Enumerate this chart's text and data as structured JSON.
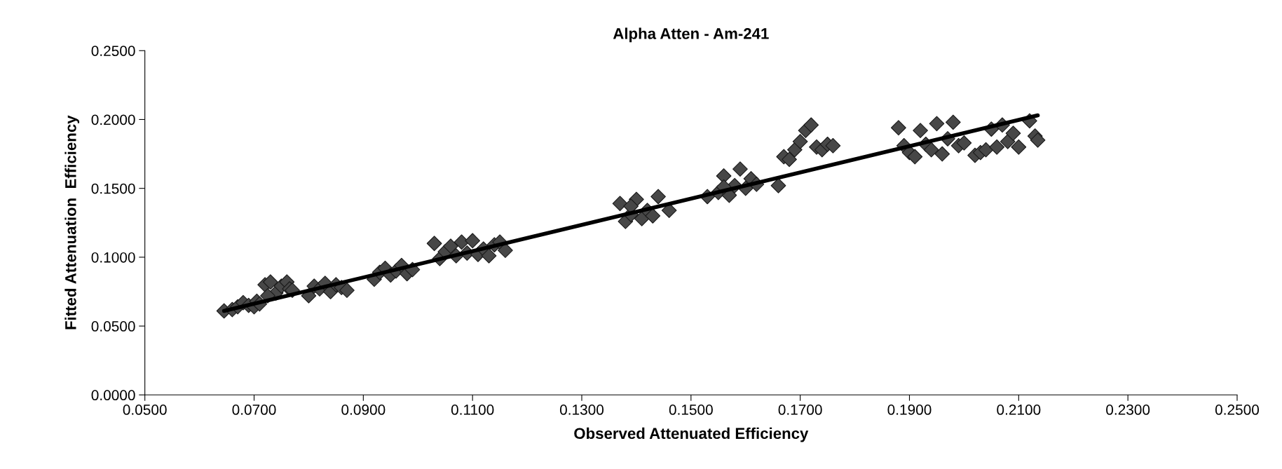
{
  "chart_data": {
    "type": "scatter",
    "title": "Alpha Atten - Am-241",
    "xlabel": "Observed Attenuated Efficiency",
    "ylabel": "Fitted Attenuation  Efficiency",
    "marker": "diamond",
    "grid": false,
    "xlim": [
      0.05,
      0.25
    ],
    "ylim": [
      0,
      0.25
    ],
    "xticks": [
      {
        "value": 0.05,
        "label": "0.0500"
      },
      {
        "value": 0.07,
        "label": "0.0700"
      },
      {
        "value": 0.09,
        "label": "0.0900"
      },
      {
        "value": 0.11,
        "label": "0.1100"
      },
      {
        "value": 0.13,
        "label": "0.1300"
      },
      {
        "value": 0.15,
        "label": "0.1500"
      },
      {
        "value": 0.17,
        "label": "0.1700"
      },
      {
        "value": 0.19,
        "label": "0.1900"
      },
      {
        "value": 0.21,
        "label": "0.2100"
      },
      {
        "value": 0.23,
        "label": "0.2300"
      },
      {
        "value": 0.25,
        "label": "0.2500"
      }
    ],
    "yticks": [
      {
        "value": 0,
        "label": "0.0000"
      },
      {
        "value": 0.05,
        "label": "0.0500"
      },
      {
        "value": 0.1,
        "label": "0.1000"
      },
      {
        "value": 0.15,
        "label": "0.1500"
      },
      {
        "value": 0.2,
        "label": "0.2000"
      },
      {
        "value": 0.25,
        "label": "0.2500"
      }
    ],
    "series": [
      {
        "color": "#474747",
        "x": [
          0.0645,
          0.066,
          0.067,
          0.068,
          0.069,
          0.07,
          0.0705,
          0.071,
          0.072,
          0.073,
          0.074,
          0.075,
          0.076,
          0.0765,
          0.077,
          0.0725,
          0.08,
          0.081,
          0.082,
          0.083,
          0.084,
          0.085,
          0.086,
          0.087,
          0.092,
          0.093,
          0.094,
          0.095,
          0.096,
          0.097,
          0.098,
          0.099,
          0.103,
          0.104,
          0.105,
          0.106,
          0.107,
          0.108,
          0.109,
          0.11,
          0.111,
          0.112,
          0.113,
          0.114,
          0.115,
          0.116,
          0.137,
          0.138,
          0.139,
          0.14,
          0.141,
          0.142,
          0.143,
          0.144,
          0.146,
          0.139,
          0.153,
          0.155,
          0.156,
          0.157,
          0.158,
          0.159,
          0.16,
          0.161,
          0.162,
          0.156,
          0.166,
          0.167,
          0.168,
          0.169,
          0.17,
          0.171,
          0.172,
          0.173,
          0.174,
          0.175,
          0.176,
          0.188,
          0.189,
          0.19,
          0.191,
          0.192,
          0.193,
          0.194,
          0.195,
          0.196,
          0.197,
          0.198,
          0.199,
          0.2,
          0.202,
          0.203,
          0.204,
          0.205,
          0.206,
          0.207,
          0.208,
          0.209,
          0.21,
          0.212,
          0.213,
          0.2135
        ],
        "values": [
          0.061,
          0.062,
          0.064,
          0.067,
          0.065,
          0.064,
          0.068,
          0.066,
          0.08,
          0.082,
          0.074,
          0.079,
          0.082,
          0.077,
          0.076,
          0.072,
          0.072,
          0.079,
          0.077,
          0.081,
          0.075,
          0.08,
          0.078,
          0.076,
          0.084,
          0.089,
          0.092,
          0.087,
          0.09,
          0.094,
          0.088,
          0.091,
          0.11,
          0.099,
          0.104,
          0.108,
          0.101,
          0.111,
          0.103,
          0.112,
          0.102,
          0.106,
          0.101,
          0.109,
          0.111,
          0.105,
          0.139,
          0.126,
          0.131,
          0.142,
          0.128,
          0.134,
          0.13,
          0.144,
          0.134,
          0.137,
          0.144,
          0.147,
          0.159,
          0.145,
          0.152,
          0.164,
          0.15,
          0.157,
          0.153,
          0.151,
          0.152,
          0.173,
          0.171,
          0.178,
          0.184,
          0.192,
          0.196,
          0.18,
          0.178,
          0.182,
          0.181,
          0.194,
          0.181,
          0.176,
          0.173,
          0.192,
          0.182,
          0.178,
          0.197,
          0.175,
          0.186,
          0.198,
          0.181,
          0.183,
          0.174,
          0.176,
          0.178,
          0.193,
          0.18,
          0.196,
          0.184,
          0.19,
          0.18,
          0.199,
          0.188,
          0.185
        ]
      },
      {
        "type": "line",
        "color": "#000000",
        "marker": "none",
        "x": [
          0.0645,
          0.2135
        ],
        "values": [
          0.061,
          0.203
        ]
      }
    ]
  }
}
